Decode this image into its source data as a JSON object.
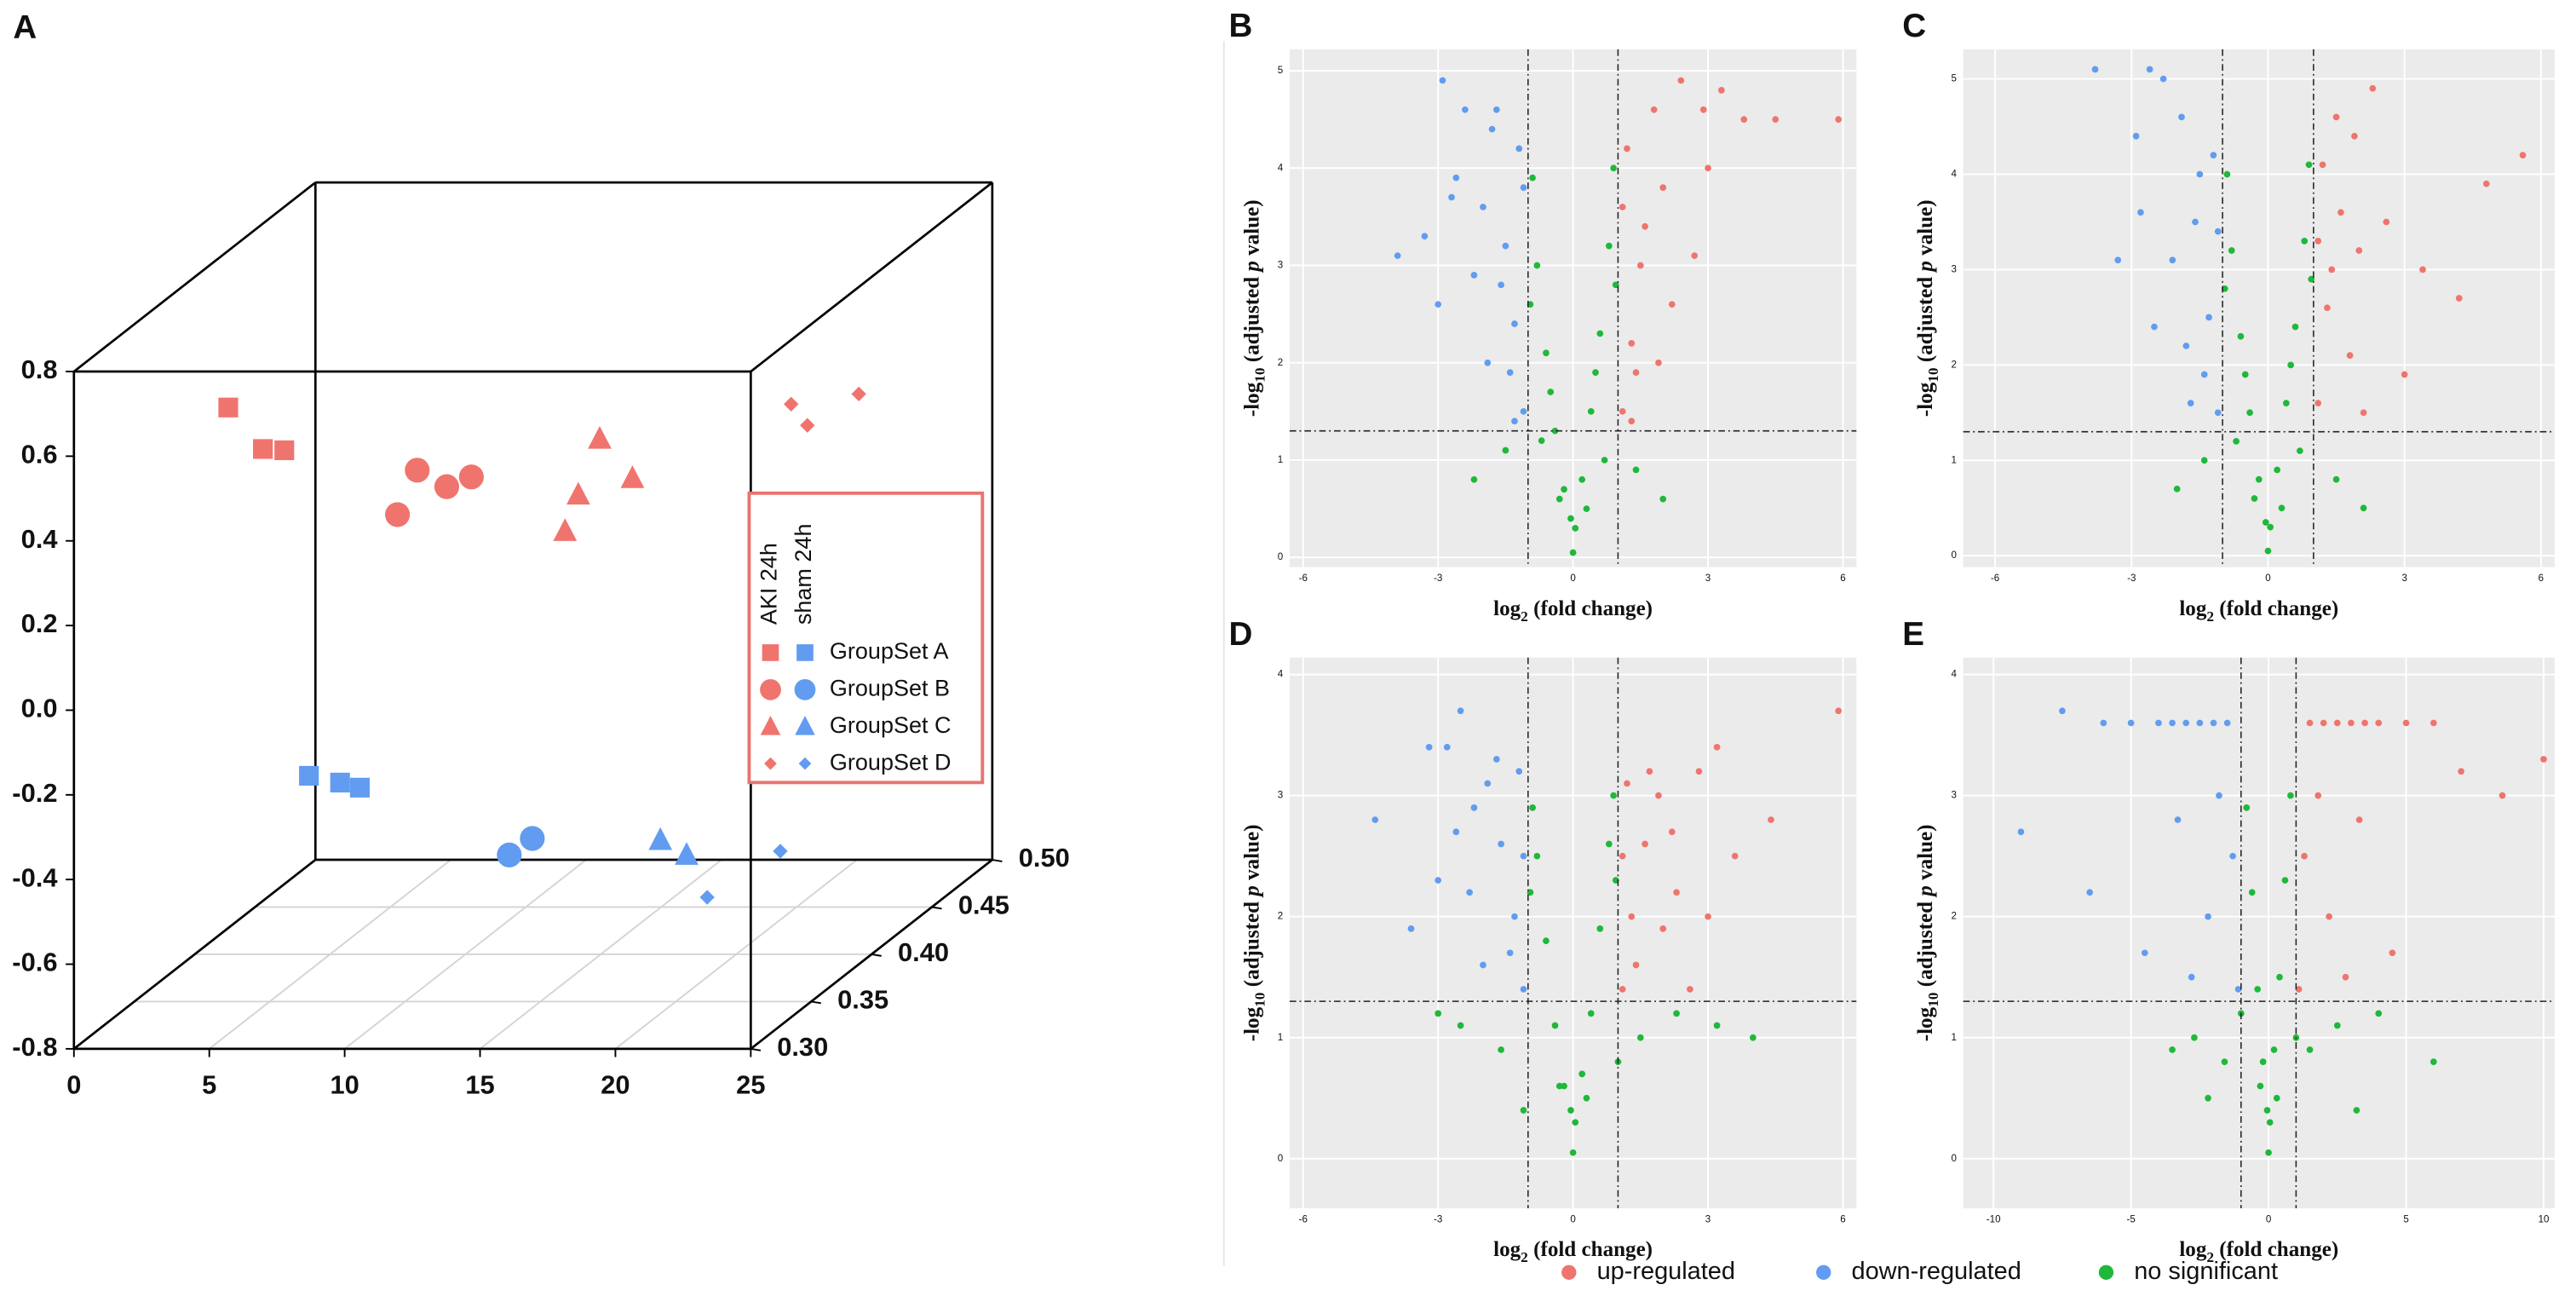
{
  "chart_data": [
    {
      "type": "scatter3d",
      "panel": "A",
      "xlim": [
        0,
        25
      ],
      "ylim": [
        -0.8,
        0.8
      ],
      "zlim": [
        0.3,
        0.5
      ],
      "xticks": [
        0,
        5,
        10,
        15,
        20,
        25
      ],
      "yticks": [
        -0.8,
        -0.6,
        -0.4,
        -0.2,
        {
          "value": 0,
          "label": "0.0"
        },
        0.2,
        0.4,
        0.6,
        0.8
      ],
      "zticks": [
        {
          "value": 0.3,
          "label": "0.30"
        },
        0.35,
        {
          "value": 0.4,
          "label": "0.40"
        },
        0.45,
        {
          "value": 0.5,
          "label": "0.50"
        }
      ],
      "groups": [
        {
          "name": "AKI 24h",
          "color": "#f0746e"
        },
        {
          "name": "sham 24h",
          "color": "#619cf0"
        }
      ],
      "series": [
        {
          "name": "GroupSet A",
          "marker": "square",
          "values": [
            {
              "x": [
                5.7,
                6.98,
                7.77
              ],
              "y": [
                0.715,
                0.617,
                0.614
              ],
              "z": [
                0.3,
                0.3,
                0.3
              ]
            },
            {
              "x": [
                8.68,
                9.83,
                10.56
              ],
              "y": [
                -0.155,
                -0.171,
                -0.183
              ],
              "z": [
                0.3,
                0.3,
                0.3
              ]
            }
          ]
        },
        {
          "name": "GroupSet B",
          "marker": "circle",
          "values": [
            {
              "x": [
                11.95,
                12.68,
                13.77,
                14.68
              ],
              "y": [
                0.462,
                0.567,
                0.528,
                0.551
              ],
              "z": [
                0.3,
                0.3,
                0.3,
                0.3
              ]
            },
            {
              "x": [
                16.08,
                16.93
              ],
              "y": [
                -0.342,
                -0.303
              ],
              "z": [
                0.3,
                0.3
              ]
            }
          ]
        },
        {
          "name": "GroupSet C",
          "marker": "triangle",
          "values": [
            {
              "x": [
                19.42,
                18.63,
                18.14,
                20.63
              ],
              "y": [
                0.641,
                0.509,
                0.423,
                0.548
              ],
              "z": [
                0.3,
                0.3,
                0.3,
                0.3
              ]
            },
            {
              "x": [
                21.66,
                22.63
              ],
              "y": [
                -0.307,
                -0.342
              ],
              "z": [
                0.3,
                0.3
              ]
            }
          ]
        },
        {
          "name": "GroupSet D",
          "marker": "diamond",
          "values": [
            {
              "x": [
                19.8,
                20.4,
                22.3
              ],
              "y": [
                0.388,
                0.338,
                0.412
              ],
              "z": [
                0.45,
                0.45,
                0.45
              ]
            },
            {
              "x": [
                19.4,
                16.7
              ],
              "y": [
                -0.668,
                -0.777
              ],
              "z": [
                0.45,
                0.45
              ]
            }
          ]
        }
      ]
    },
    {
      "type": "volcano",
      "panel": "B",
      "xlim": [
        -6.3,
        6.3
      ],
      "ylim": [
        -0.1,
        5.22
      ],
      "xticks": [
        -6,
        -3,
        0,
        3,
        6
      ],
      "yticks": [
        0,
        1,
        2,
        3,
        4,
        5
      ],
      "x_label": [
        "log",
        "2",
        " (fold change)"
      ],
      "y_label": [
        "-log",
        "10",
        " (adjusted ",
        "p",
        " value)"
      ],
      "vlines": [
        -1,
        1
      ],
      "hline": 1.3,
      "series": [
        {
          "x": [
            1.1,
            1.3,
            1.5,
            1.2,
            1.8,
            2.0,
            2.4,
            2.9,
            3.3,
            1.4,
            1.6,
            2.2,
            3.8,
            4.5,
            5.9,
            1.1,
            1.9,
            2.7,
            1.3,
            3.0
          ],
          "y": [
            1.5,
            2.2,
            3.0,
            4.2,
            4.6,
            3.8,
            4.9,
            4.6,
            4.8,
            1.9,
            3.4,
            2.6,
            4.5,
            4.5,
            4.5,
            3.6,
            2.0,
            3.1,
            1.4,
            4.0
          ]
        },
        {
          "x": [
            -1.1,
            -1.3,
            -1.5,
            -1.2,
            -1.8,
            -2.0,
            -2.4,
            -2.9,
            -3.3,
            -1.4,
            -1.6,
            -2.2,
            -3.9,
            -3.0,
            -2.6,
            -1.1,
            -1.9,
            -2.7,
            -1.3,
            -1.7
          ],
          "y": [
            1.5,
            2.4,
            3.2,
            4.2,
            4.4,
            3.6,
            4.6,
            4.9,
            3.3,
            1.9,
            2.8,
            2.9,
            3.1,
            2.6,
            3.9,
            3.8,
            2.0,
            3.7,
            1.4,
            4.6
          ]
        },
        {
          "x": [
            0,
            0.05,
            -0.05,
            0.2,
            -0.2,
            0.4,
            -0.4,
            0.6,
            -0.6,
            0.8,
            -0.8,
            0.9,
            -0.9,
            0.5,
            -0.5,
            0.95,
            -0.95,
            1.4,
            -1.5,
            2.0,
            -2.2,
            0.3,
            -0.3,
            0.7,
            -0.7
          ],
          "y": [
            0.05,
            0.3,
            0.4,
            0.8,
            0.7,
            1.5,
            1.3,
            2.3,
            2.1,
            3.2,
            3.0,
            4.0,
            3.9,
            1.9,
            1.7,
            2.8,
            2.6,
            0.9,
            1.1,
            0.6,
            0.8,
            0.5,
            0.6,
            1.0,
            1.2
          ]
        }
      ]
    },
    {
      "type": "volcano",
      "panel": "C",
      "xlim": [
        -6.7,
        6.3
      ],
      "ylim": [
        -0.12,
        5.31
      ],
      "xticks": [
        -6,
        -3,
        0,
        3,
        6
      ],
      "yticks": [
        0,
        1,
        2,
        3,
        4,
        5
      ],
      "x_label": [
        "log",
        "2",
        " (fold change)"
      ],
      "y_label": [
        "-log",
        "10",
        " (adjusted ",
        "p",
        " value)"
      ],
      "vlines": [
        -1,
        1
      ],
      "hline": 1.3,
      "series": [
        {
          "x": [
            1.1,
            1.3,
            1.6,
            1.2,
            1.9,
            2.3,
            1.4,
            1.8,
            2.6,
            3.0,
            4.2,
            4.8,
            5.6,
            1.1,
            2.1,
            1.5,
            3.4,
            2.0
          ],
          "y": [
            1.6,
            2.6,
            3.6,
            4.1,
            4.4,
            4.9,
            3.0,
            2.1,
            3.5,
            1.9,
            2.7,
            3.9,
            4.2,
            3.3,
            1.5,
            4.6,
            3.0,
            3.2
          ]
        },
        {
          "x": [
            -1.1,
            -1.3,
            -1.6,
            -1.2,
            -1.9,
            -2.3,
            -2.6,
            -2.9,
            -3.3,
            -1.4,
            -1.8,
            -2.1,
            -3.8,
            -2.5,
            -1.1,
            -1.5,
            -2.8,
            -1.7
          ],
          "y": [
            1.5,
            2.5,
            3.5,
            4.2,
            4.6,
            5.0,
            5.1,
            4.4,
            3.1,
            1.9,
            2.2,
            3.1,
            5.1,
            2.4,
            3.4,
            4.0,
            3.6,
            1.6
          ]
        },
        {
          "x": [
            0,
            0.05,
            -0.05,
            0.2,
            -0.2,
            0.4,
            -0.4,
            0.6,
            -0.6,
            0.8,
            -0.8,
            0.9,
            -0.9,
            0.5,
            -0.5,
            0.95,
            -0.95,
            1.5,
            -1.4,
            2.1,
            -2.0,
            0.3,
            -0.3,
            0.7,
            -0.7
          ],
          "y": [
            0.05,
            0.3,
            0.35,
            0.9,
            0.8,
            1.6,
            1.5,
            2.4,
            2.3,
            3.3,
            3.2,
            4.1,
            4.0,
            2.0,
            1.9,
            2.9,
            2.8,
            0.8,
            1.0,
            0.5,
            0.7,
            0.5,
            0.6,
            1.1,
            1.2
          ]
        }
      ]
    },
    {
      "type": "volcano",
      "panel": "D",
      "xlim": [
        -6.3,
        6.3
      ],
      "ylim": [
        -0.41,
        4.14
      ],
      "xticks": [
        -6,
        -3,
        0,
        3,
        6
      ],
      "yticks": [
        0,
        1,
        2,
        3,
        4
      ],
      "x_label": [
        "log",
        "2",
        " (fold change)"
      ],
      "y_label": [
        "-log",
        "10",
        " (adjusted ",
        "p",
        " value)"
      ],
      "vlines": [
        -1,
        1
      ],
      "hline": 1.3,
      "series": [
        {
          "x": [
            1.1,
            1.3,
            1.6,
            1.2,
            1.9,
            2.3,
            2.8,
            3.2,
            3.6,
            4.4,
            1.4,
            2.0,
            2.6,
            5.9,
            1.1,
            1.7,
            3.0,
            2.2
          ],
          "y": [
            1.4,
            2.0,
            2.6,
            3.1,
            3.0,
            2.2,
            3.2,
            3.4,
            2.5,
            2.8,
            1.6,
            1.9,
            1.4,
            3.7,
            2.5,
            3.2,
            2.0,
            2.7
          ]
        },
        {
          "x": [
            -1.1,
            -1.3,
            -1.6,
            -1.2,
            -1.9,
            -2.3,
            -2.8,
            -3.2,
            -3.6,
            -4.4,
            -1.4,
            -2.0,
            -2.6,
            -1.1,
            -1.7,
            -3.0,
            -2.2,
            -2.5
          ],
          "y": [
            1.4,
            2.0,
            2.6,
            3.2,
            3.1,
            2.2,
            3.4,
            3.4,
            1.9,
            2.8,
            1.7,
            1.6,
            2.7,
            2.5,
            3.3,
            2.3,
            2.9,
            3.7
          ]
        },
        {
          "x": [
            0,
            0.05,
            -0.05,
            0.2,
            -0.2,
            0.4,
            -0.4,
            0.6,
            -0.6,
            0.8,
            -0.8,
            0.9,
            -0.9,
            0.95,
            -0.95,
            1.5,
            -1.6,
            2.3,
            -2.5,
            3.2,
            -3.0,
            0.3,
            -0.3,
            1.0,
            -1.1,
            4.0
          ],
          "y": [
            0.05,
            0.3,
            0.4,
            0.7,
            0.6,
            1.2,
            1.1,
            1.9,
            1.8,
            2.6,
            2.5,
            3.0,
            2.9,
            2.3,
            2.2,
            1.0,
            0.9,
            1.2,
            1.1,
            1.1,
            1.2,
            0.5,
            0.6,
            0.8,
            0.4,
            1.0
          ]
        }
      ]
    },
    {
      "type": "volcano",
      "panel": "E",
      "xlim": [
        -11.1,
        10.4
      ],
      "ylim": [
        -0.41,
        4.14
      ],
      "xticks": [
        -10,
        -5,
        0,
        5,
        10
      ],
      "yticks": [
        0,
        1,
        2,
        3,
        4
      ],
      "x_label": [
        "log",
        "2",
        " (fold change)"
      ],
      "y_label": [
        "-log",
        "10",
        " (adjusted ",
        "p",
        " value)"
      ],
      "vlines": [
        -1,
        1
      ],
      "hline": 1.3,
      "series": [
        {
          "x": [
            1.1,
            1.5,
            2.0,
            2.5,
            3.0,
            3.5,
            4.0,
            5.0,
            6.0,
            7.0,
            8.5,
            10,
            1.3,
            2.2,
            3.3,
            4.5,
            1.8,
            2.8
          ],
          "y": [
            1.4,
            3.6,
            3.6,
            3.6,
            3.6,
            3.6,
            3.6,
            3.6,
            3.6,
            3.2,
            3.0,
            3.3,
            2.5,
            2.0,
            2.8,
            1.7,
            3.0,
            1.5
          ]
        },
        {
          "x": [
            -1.1,
            -1.5,
            -2.0,
            -2.5,
            -3.0,
            -3.5,
            -4.0,
            -5.0,
            -6.0,
            -7.5,
            -1.3,
            -2.2,
            -3.3,
            -4.5,
            -1.8,
            -2.8,
            -9.0,
            -6.5
          ],
          "y": [
            1.4,
            3.6,
            3.6,
            3.6,
            3.6,
            3.6,
            3.6,
            3.6,
            3.6,
            3.7,
            2.5,
            2.0,
            2.8,
            1.7,
            3.0,
            1.5,
            2.7,
            2.2
          ]
        },
        {
          "x": [
            0,
            0.05,
            -0.05,
            0.2,
            -0.2,
            0.4,
            -0.4,
            0.6,
            -0.6,
            0.8,
            -0.8,
            1.0,
            -1.0,
            1.5,
            -1.6,
            2.5,
            -2.7,
            4.0,
            -3.5,
            6.0,
            0.3,
            -0.3,
            3.2,
            -2.2
          ],
          "y": [
            0.05,
            0.3,
            0.4,
            0.9,
            0.8,
            1.5,
            1.4,
            2.3,
            2.2,
            3.0,
            2.9,
            1.0,
            1.2,
            0.9,
            0.8,
            1.1,
            1.0,
            1.2,
            0.9,
            0.8,
            0.5,
            0.6,
            0.4,
            0.5
          ]
        }
      ]
    }
  ],
  "legend": {
    "series": [
      {
        "name": "up-regulated",
        "color": "#f0746e"
      },
      {
        "name": "down-regulated",
        "color": "#619cf0"
      },
      {
        "name": "no significant",
        "color": "#1fb83a"
      }
    ]
  }
}
